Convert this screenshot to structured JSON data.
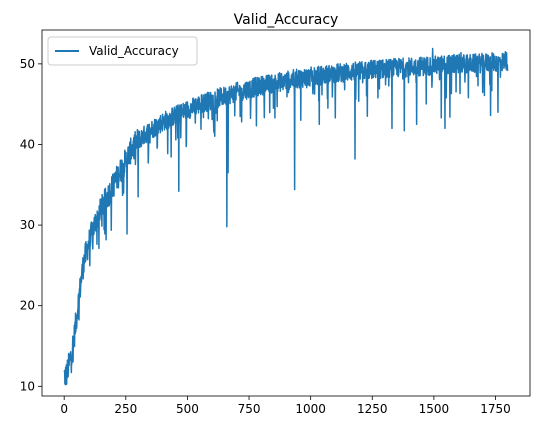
{
  "chart_data": {
    "type": "line",
    "title": "Valid_Accuracy",
    "xlabel": "",
    "ylabel": "",
    "xlim": [
      -90,
      1890
    ],
    "ylim": [
      8.8,
      54.2
    ],
    "x_ticks": [
      0,
      250,
      500,
      750,
      1000,
      1250,
      1500,
      1750
    ],
    "y_ticks": [
      10,
      20,
      30,
      40,
      50
    ],
    "grid": false,
    "legend": {
      "position": "top-left",
      "entries": [
        "Valid_Accuracy"
      ]
    },
    "series": [
      {
        "name": "Valid_Accuracy",
        "color": "#1f77b4",
        "n_points": 1800,
        "trend": [
          [
            0,
            11.3
          ],
          [
            10,
            11.5
          ],
          [
            20,
            12.8
          ],
          [
            30,
            14.2
          ],
          [
            40,
            16.0
          ],
          [
            50,
            18.5
          ],
          [
            60,
            21.0
          ],
          [
            70,
            23.5
          ],
          [
            80,
            25.5
          ],
          [
            100,
            27.8
          ],
          [
            120,
            29.8
          ],
          [
            150,
            32.0
          ],
          [
            175,
            33.5
          ],
          [
            200,
            35.0
          ],
          [
            225,
            36.5
          ],
          [
            250,
            38.0
          ],
          [
            275,
            39.5
          ],
          [
            300,
            40.5
          ],
          [
            350,
            41.8
          ],
          [
            400,
            42.8
          ],
          [
            450,
            43.6
          ],
          [
            500,
            44.3
          ],
          [
            550,
            45.0
          ],
          [
            600,
            45.5
          ],
          [
            650,
            46.0
          ],
          [
            700,
            46.5
          ],
          [
            750,
            46.9
          ],
          [
            800,
            47.3
          ],
          [
            850,
            47.6
          ],
          [
            900,
            47.9
          ],
          [
            950,
            48.2
          ],
          [
            1000,
            48.4
          ],
          [
            1050,
            48.6
          ],
          [
            1100,
            48.8
          ],
          [
            1150,
            49.0
          ],
          [
            1200,
            49.1
          ],
          [
            1250,
            49.3
          ],
          [
            1300,
            49.4
          ],
          [
            1350,
            49.5
          ],
          [
            1400,
            49.6
          ],
          [
            1450,
            49.7
          ],
          [
            1500,
            49.8
          ],
          [
            1550,
            49.9
          ],
          [
            1600,
            50.0
          ],
          [
            1650,
            50.0
          ],
          [
            1700,
            50.1
          ],
          [
            1750,
            50.2
          ],
          [
            1800,
            50.3
          ]
        ],
        "notable_points": [
          [
            1,
            11.9
          ],
          [
            5,
            10.2
          ],
          [
            255,
            28.9
          ],
          [
            300,
            33.5
          ],
          [
            360,
            40.9
          ],
          [
            465,
            34.2
          ],
          [
            585,
            43.2
          ],
          [
            660,
            29.8
          ],
          [
            665,
            36.5
          ],
          [
            720,
            42.8
          ],
          [
            780,
            42.3
          ],
          [
            855,
            43.3
          ],
          [
            935,
            34.4
          ],
          [
            960,
            43.0
          ],
          [
            1035,
            42.5
          ],
          [
            1100,
            43.3
          ],
          [
            1180,
            38.2
          ],
          [
            1230,
            43.5
          ],
          [
            1330,
            42.0
          ],
          [
            1380,
            41.7
          ],
          [
            1430,
            42.5
          ],
          [
            1530,
            43.3
          ],
          [
            1545,
            42.0
          ],
          [
            1565,
            43.4
          ],
          [
            1640,
            45.8
          ],
          [
            1730,
            43.6
          ],
          [
            1760,
            44.0
          ],
          [
            1495,
            51.9
          ],
          [
            1610,
            51.4
          ],
          [
            1790,
            51.5
          ]
        ]
      }
    ]
  }
}
